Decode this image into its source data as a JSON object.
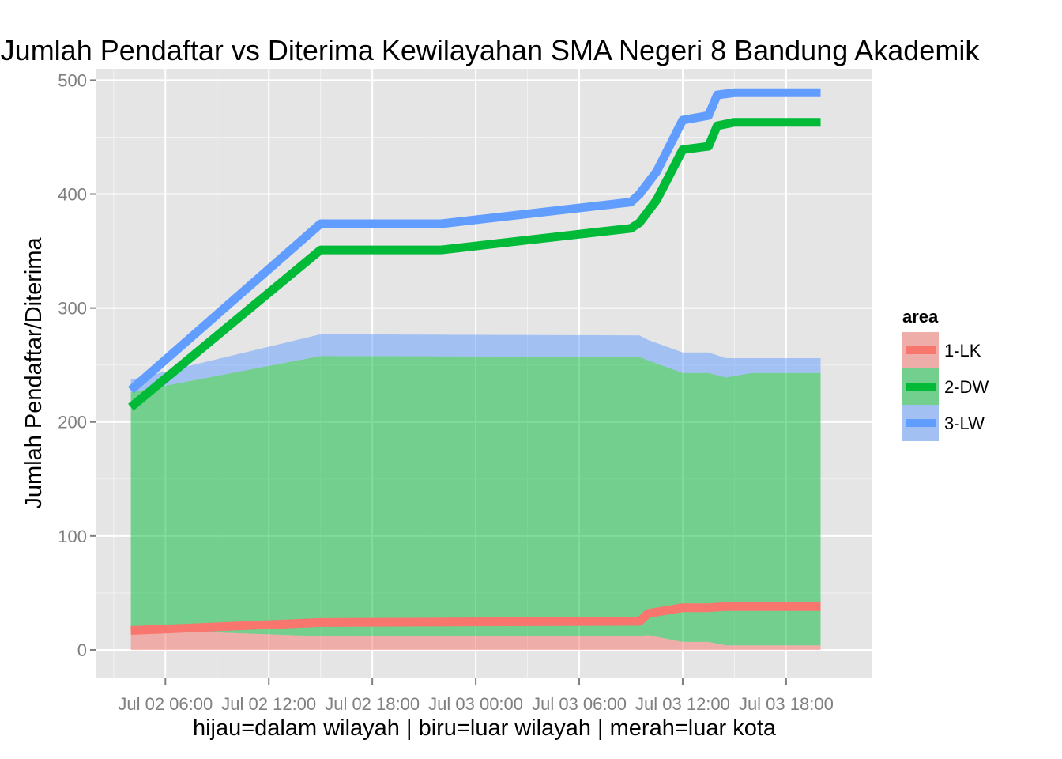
{
  "chart_data": {
    "type": "area",
    "title": "Jumlah Pendaftar vs Diterima Kewilayahan SMA Negeri 8 Bandung Akademik",
    "xlabel": "hijau=dalam wilayah | biru=luar wilayah | merah=luar kota",
    "ylabel": "Jumlah Pendaftar/Diterima",
    "x_unit": "hours",
    "xlim": [
      "Jul 02 02:00",
      "Jul 03 23:00"
    ],
    "x_ticks": [
      "Jul 02 06:00",
      "Jul 02 12:00",
      "Jul 02 18:00",
      "Jul 03 00:00",
      "Jul 03 06:00",
      "Jul 03 12:00",
      "Jul 03 18:00"
    ],
    "ylim": [
      -25,
      510
    ],
    "y_ticks": [
      0,
      100,
      200,
      300,
      400,
      500
    ],
    "legend": {
      "title": "area",
      "position": "right",
      "entries": [
        "1-LK",
        "2-DW",
        "3-LW"
      ]
    },
    "colors": {
      "1-LK": "#F8766D",
      "2-DW": "#00BA38",
      "3-LW": "#619CFF",
      "panel": "#E5E5E5",
      "grid": "#FFFFFF"
    },
    "area_series": [
      {
        "name": "1-LK",
        "x": [
          "Jul 02 04:00",
          "Jul 02 15:00",
          "Jul 03 09:30",
          "Jul 03 10:00",
          "Jul 03 12:00",
          "Jul 03 13:30",
          "Jul 03 14:30",
          "Jul 03 16:00",
          "Jul 03 20:00"
        ],
        "y0": [
          0,
          0,
          0,
          0,
          0,
          0,
          0,
          0,
          0
        ],
        "y1": [
          18,
          12,
          12,
          13,
          7,
          7,
          4,
          4,
          4
        ]
      },
      {
        "name": "2-DW",
        "x": [
          "Jul 02 04:00",
          "Jul 02 15:00",
          "Jul 03 09:30",
          "Jul 03 10:00",
          "Jul 03 12:00",
          "Jul 03 13:30",
          "Jul 03 14:30",
          "Jul 03 16:00",
          "Jul 03 20:00"
        ],
        "y0": [
          18,
          12,
          12,
          13,
          7,
          7,
          4,
          4,
          4
        ],
        "y1": [
          226,
          258,
          257,
          254,
          243,
          243,
          239,
          243,
          243
        ]
      },
      {
        "name": "3-LW",
        "x": [
          "Jul 02 04:00",
          "Jul 02 15:00",
          "Jul 03 09:30",
          "Jul 03 10:00",
          "Jul 03 12:00",
          "Jul 03 13:30",
          "Jul 03 14:30",
          "Jul 03 16:00",
          "Jul 03 20:00"
        ],
        "y0": [
          226,
          258,
          257,
          254,
          243,
          243,
          239,
          243,
          243
        ],
        "y1": [
          237,
          277,
          276,
          272,
          261,
          261,
          256,
          256,
          256
        ]
      }
    ],
    "line_series": [
      {
        "name": "1-LK",
        "x": [
          "Jul 02 04:00",
          "Jul 02 15:00",
          "Jul 03 09:30",
          "Jul 03 10:00",
          "Jul 03 12:00",
          "Jul 03 13:30",
          "Jul 03 14:30",
          "Jul 03 20:00"
        ],
        "y": [
          17,
          24,
          25,
          32,
          37,
          37,
          38,
          38
        ]
      },
      {
        "name": "2-DW",
        "x": [
          "Jul 02 04:00",
          "Jul 02 15:00",
          "Jul 02 22:00",
          "Jul 03 09:00",
          "Jul 03 09:30",
          "Jul 03 10:30",
          "Jul 03 12:00",
          "Jul 03 13:30",
          "Jul 03 14:00",
          "Jul 03 15:00",
          "Jul 03 20:00"
        ],
        "y": [
          213,
          351,
          351,
          370,
          375,
          395,
          439,
          442,
          460,
          463,
          463
        ]
      },
      {
        "name": "3-LW",
        "x": [
          "Jul 02 04:00",
          "Jul 02 15:00",
          "Jul 02 22:00",
          "Jul 03 09:00",
          "Jul 03 09:30",
          "Jul 03 10:30",
          "Jul 03 12:00",
          "Jul 03 13:30",
          "Jul 03 14:00",
          "Jul 03 15:00",
          "Jul 03 20:00"
        ],
        "y": [
          228,
          374,
          374,
          393,
          400,
          420,
          465,
          469,
          487,
          489,
          489
        ]
      }
    ]
  }
}
